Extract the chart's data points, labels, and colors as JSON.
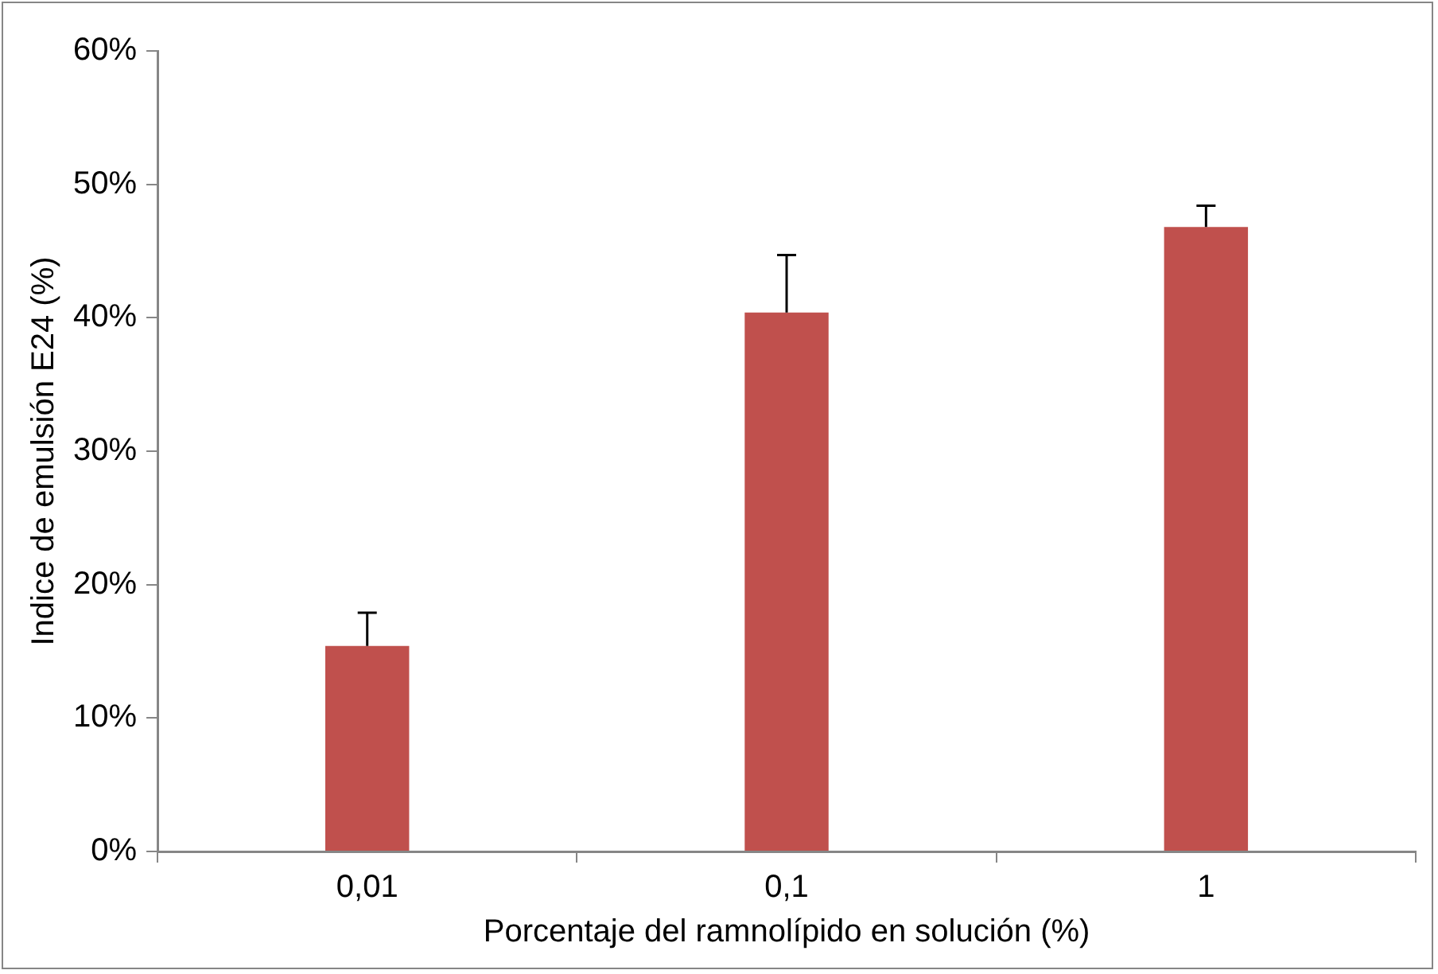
{
  "chart_data": {
    "type": "bar",
    "xlabel": "Porcentaje del ramnolípido en solución (%)",
    "ylabel": "Indice de emulsión E24 (%)",
    "categories": [
      "0,01",
      "0,1",
      "1"
    ],
    "series": [
      {
        "color": "#c0504d",
        "values": [
          15.4,
          40.4,
          46.8
        ],
        "errors": [
          [
            15.4,
            17.9
          ],
          [
            40.4,
            44.7
          ],
          [
            46.8,
            48.4
          ]
        ]
      }
    ],
    "ylim": [
      0,
      60
    ],
    "yticks": [
      {
        "value": 0,
        "label": "0%"
      },
      {
        "value": 10,
        "label": "10%"
      },
      {
        "value": 20,
        "label": "20%"
      },
      {
        "value": 30,
        "label": "30%"
      },
      {
        "value": 40,
        "label": "40%"
      },
      {
        "value": 50,
        "label": "50%"
      },
      {
        "value": 60,
        "label": "60%"
      }
    ],
    "grid": false,
    "legend": false
  }
}
